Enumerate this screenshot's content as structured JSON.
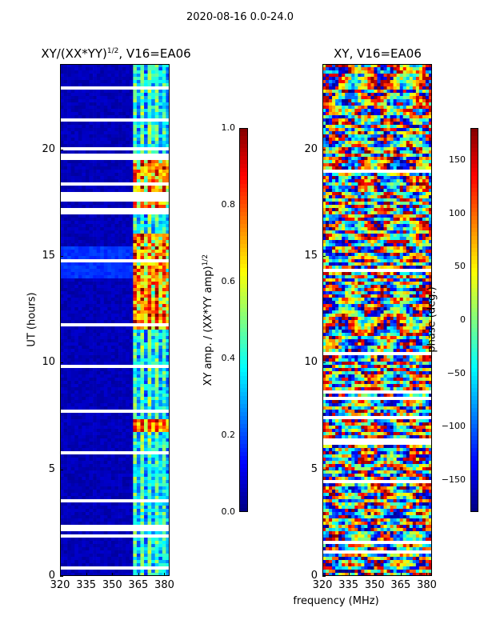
{
  "chart_data": [
    {
      "type": "heatmap",
      "suptitle": "2020-08-16 0.0-24.0",
      "title_main": "XY/(XX*YY)",
      "title_sup": "1/2",
      "title_rest": ", V16=EA06",
      "ylabel": "UT (hours)",
      "xlabel": "",
      "xlim": [
        320,
        383
      ],
      "ylim": [
        0,
        24
      ],
      "xticks": [
        320,
        335,
        350,
        365,
        380
      ],
      "yticks": [
        0,
        5,
        10,
        15,
        20
      ],
      "colorbar": {
        "label_main": "XY amp. / (XX*YY amp)",
        "label_sup": "1/2",
        "range": [
          0.0,
          1.0
        ],
        "ticks": [
          "0.0",
          "0.2",
          "0.4",
          "0.6",
          "0.8",
          "1.0"
        ],
        "colormap": "jet"
      },
      "description": "Normalized cross-correlation amplitude vs frequency and UT"
    },
    {
      "type": "heatmap",
      "title": "XY, V16=EA06",
      "ylabel": "",
      "xlabel": "frequency (MHz)",
      "xlim": [
        320,
        383
      ],
      "ylim": [
        0,
        24
      ],
      "xticks": [
        320,
        335,
        350,
        365,
        380
      ],
      "yticks": [
        0,
        5,
        10,
        15,
        20
      ],
      "colorbar": {
        "label": "phase (deg.)",
        "range": [
          -180,
          180
        ],
        "ticks": [
          "150",
          "100",
          "50",
          "0",
          "−50",
          "−100",
          "−150"
        ],
        "tick_values": [
          150,
          100,
          50,
          0,
          -50,
          -100,
          -150
        ],
        "colormap": "jet"
      },
      "description": "Cross-correlation phase vs frequency and UT"
    }
  ],
  "tick_labels": {
    "y": [
      "0",
      "5",
      "10",
      "15",
      "20"
    ],
    "x": [
      "320",
      "335",
      "350",
      "365",
      "380"
    ],
    "amp_cbar": [
      "0.0",
      "0.2",
      "0.4",
      "0.6",
      "0.8",
      "1.0"
    ]
  }
}
